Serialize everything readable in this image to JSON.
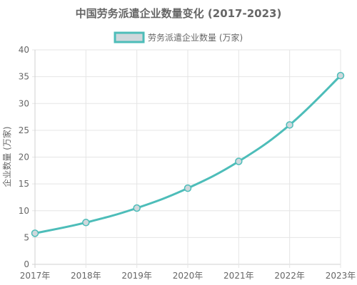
{
  "chart_data": {
    "type": "line",
    "title": "中国劳务派遣企业数量变化 (2017-2023)",
    "xlabel": "",
    "ylabel": "企业数量 (万家)",
    "categories": [
      "2017年",
      "2018年",
      "2019年",
      "2020年",
      "2021年",
      "2022年",
      "2023年"
    ],
    "series": [
      {
        "name": "劳务派遣企业数量 (万家)",
        "values": [
          5.8,
          7.8,
          10.5,
          14.2,
          19.2,
          26.0,
          35.2
        ]
      }
    ],
    "ylim": [
      0,
      40
    ],
    "yticks": [
      0,
      5,
      10,
      15,
      20,
      25,
      30,
      35,
      40
    ],
    "grid": true,
    "legend_position": "top-center",
    "colors": {
      "line": "#4dbdb9",
      "point_fill": "#cfd8dc",
      "legend_fill": "#cfd8dc"
    }
  }
}
